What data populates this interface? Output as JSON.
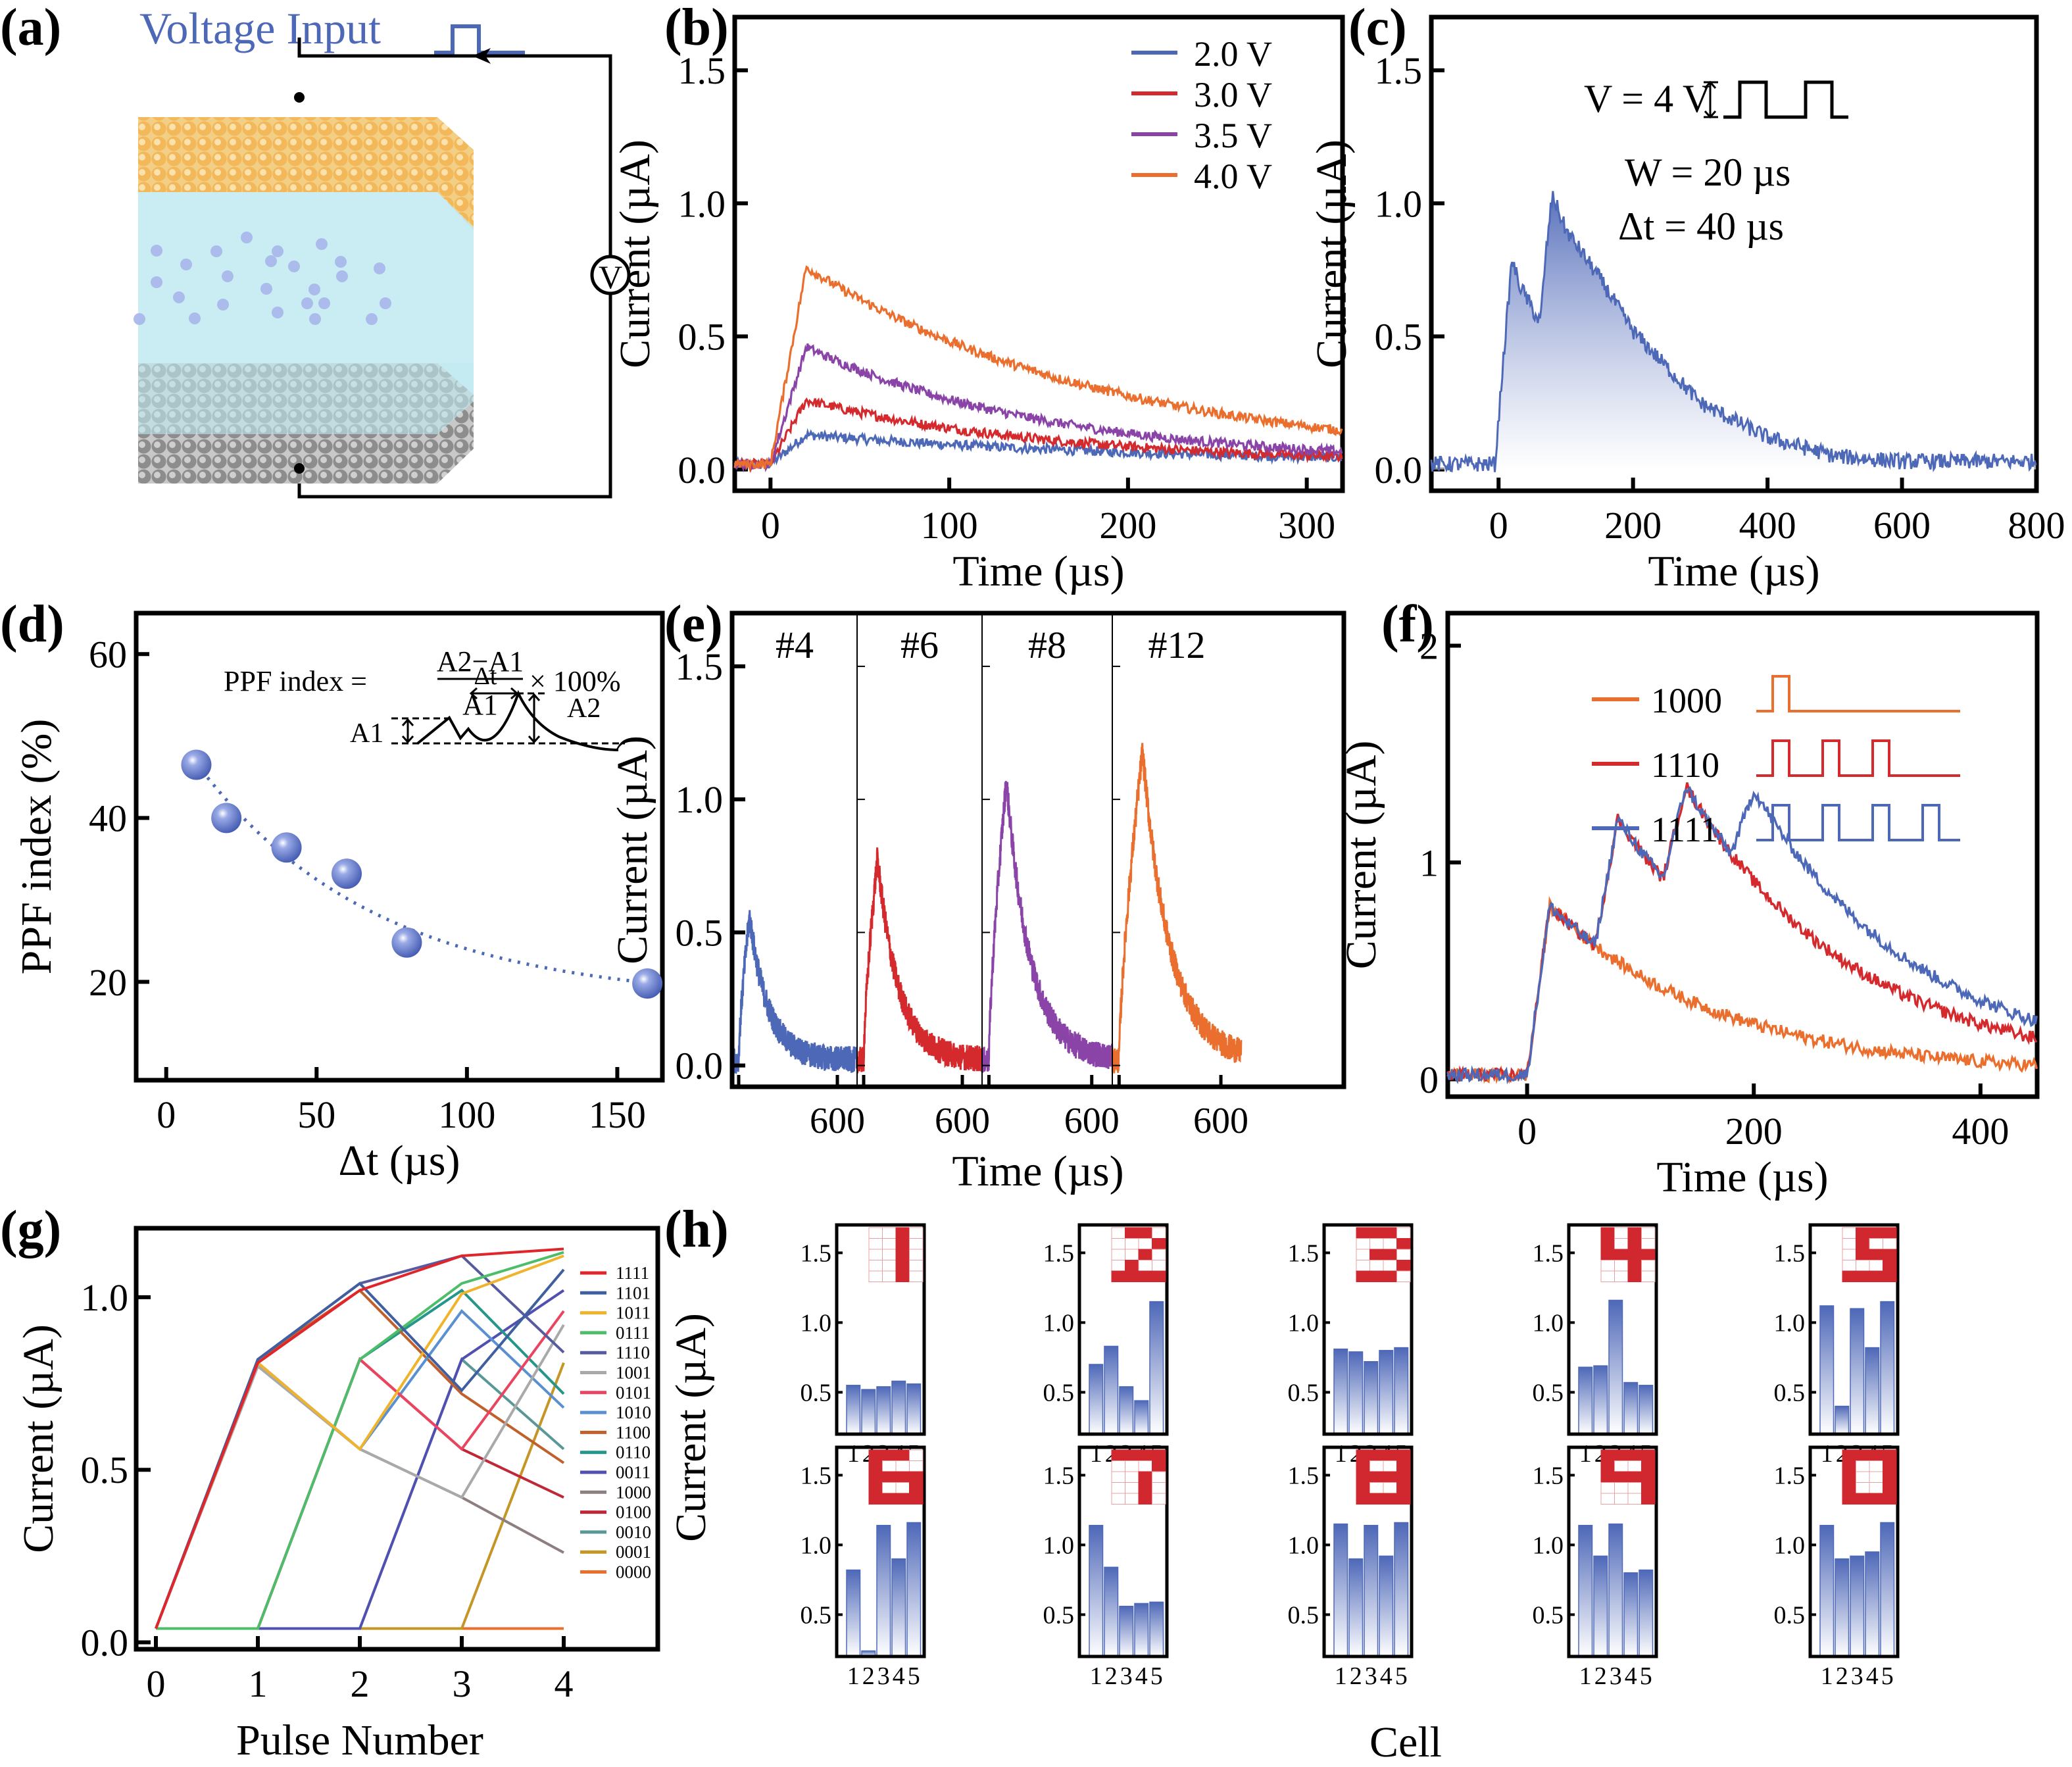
{
  "figure": {
    "panel_labels": [
      "(a)",
      "(b)",
      "(c)",
      "(d)",
      "(e)",
      "(f)",
      "(g)",
      "(h)"
    ],
    "colors": {
      "blue": "#4e68b8",
      "red": "#d42a2e",
      "purple": "#8a44a8",
      "orange": "#ea6f2e",
      "pattern_red": "#d0282e",
      "axis": "#000000"
    }
  },
  "panel_a": {
    "title": "Voltage Input",
    "voltmeter_label": "V",
    "layers": [
      "top electrode",
      "electrolyte with ions",
      "bottom electrode"
    ],
    "layer_colors": {
      "top": "#f2c062",
      "middle": "#bfeaf0",
      "bottom": "#9a9a9a",
      "ions": "#aab8ea"
    }
  },
  "chart_data": [
    {
      "id": "b",
      "type": "line",
      "title": "",
      "xlabel": "Time (µs)",
      "ylabel": "Current (µA)",
      "xlim": [
        -20,
        320
      ],
      "ylim": [
        -0.08,
        1.7
      ],
      "xticks": [
        0,
        100,
        200,
        300
      ],
      "yticks": [
        0.0,
        0.5,
        1.0,
        1.5
      ],
      "ytick_labels": [
        "0.0",
        "0.5",
        "1.0",
        "1.5"
      ],
      "legend_position": "top-right",
      "series": [
        {
          "name": "2.0 V",
          "color": "#4e68b8",
          "baseline": 0.02,
          "rise_start": 0,
          "peak_time": 20,
          "peak": 0.13,
          "tau": 200
        },
        {
          "name": "3.0 V",
          "color": "#d42a2e",
          "baseline": 0.02,
          "rise_start": 0,
          "peak_time": 20,
          "peak": 0.26,
          "tau": 140
        },
        {
          "name": "3.5 V",
          "color": "#8a44a8",
          "baseline": 0.02,
          "rise_start": 0,
          "peak_time": 20,
          "peak": 0.46,
          "tau": 135
        },
        {
          "name": "4.0 V",
          "color": "#ea6f2e",
          "baseline": 0.02,
          "rise_start": 0,
          "peak_time": 20,
          "peak": 0.76,
          "tau": 170
        }
      ]
    },
    {
      "id": "c",
      "type": "area",
      "title": "",
      "xlabel": "Time (µs)",
      "ylabel": "Current (µA)",
      "xlim": [
        -100,
        800
      ],
      "ylim": [
        -0.08,
        1.7
      ],
      "xticks": [
        0,
        200,
        400,
        600,
        800
      ],
      "yticks": [
        0.0,
        0.5,
        1.0,
        1.5
      ],
      "ytick_labels": [
        "0.0",
        "0.5",
        "1.0",
        "1.5"
      ],
      "annotations": [
        "V = 4 V",
        "W = 20 µs",
        "Δt = 40 µs"
      ],
      "series": [
        {
          "name": "paired pulse response",
          "color": "#4e68b8",
          "keypoints": [
            [
              -100,
              0.02
            ],
            [
              -5,
              0.02
            ],
            [
              5,
              0.35
            ],
            [
              20,
              0.79
            ],
            [
              30,
              0.7
            ],
            [
              55,
              0.58
            ],
            [
              62,
              0.55
            ],
            [
              70,
              0.8
            ],
            [
              80,
              1.03
            ],
            [
              100,
              0.9
            ],
            [
              150,
              0.72
            ],
            [
              200,
              0.52
            ],
            [
              300,
              0.25
            ],
            [
              400,
              0.12
            ],
            [
              500,
              0.05
            ],
            [
              600,
              0.03
            ],
            [
              800,
              0.03
            ]
          ]
        }
      ]
    },
    {
      "id": "d",
      "type": "scatter",
      "title": "",
      "xlabel": "Δt (µs)",
      "ylabel": "PPF index (%)",
      "xlim": [
        -10,
        165
      ],
      "ylim": [
        8,
        65
      ],
      "xticks": [
        0,
        50,
        100,
        150
      ],
      "yticks": [
        20,
        40,
        60
      ],
      "formula": {
        "lhs": "PPF index =",
        "numerator": "A2−A1",
        "denominator": "A1",
        "rhs": "× 100%"
      },
      "inset_labels": {
        "dt": "Δt",
        "a1": "A1",
        "a2": "A2"
      },
      "points": [
        {
          "x": 10,
          "y": 46.5
        },
        {
          "x": 20,
          "y": 40.0
        },
        {
          "x": 40,
          "y": 36.4
        },
        {
          "x": 60,
          "y": 33.2
        },
        {
          "x": 80,
          "y": 24.8
        },
        {
          "x": 160,
          "y": 19.8
        }
      ],
      "fit": {
        "type": "exponential",
        "style": "dotted",
        "color": "#4e68b8",
        "y0": 17.5,
        "A": 34.5,
        "tau": 60
      }
    },
    {
      "id": "e",
      "type": "line",
      "title": "",
      "xlabel": "Time (µs)",
      "ylabel": "Current (µA)",
      "ylim": [
        -0.08,
        1.7
      ],
      "yticks": [
        0.0,
        0.5,
        1.0,
        1.5
      ],
      "ytick_labels": [
        "0.0",
        "0.5",
        "1.0",
        "1.5"
      ],
      "subpanel_xtick_label": "600",
      "subpanels": [
        {
          "label": "#4",
          "color": "#4e68b8",
          "peak": 0.56,
          "pulses": 4
        },
        {
          "label": "#6",
          "color": "#d42a2e",
          "peak": 0.78,
          "pulses": 6
        },
        {
          "label": "#8",
          "color": "#8a44a8",
          "peak": 1.07,
          "pulses": 8
        },
        {
          "label": "#12",
          "color": "#ea6f2e",
          "peak": 1.18,
          "pulses": 12
        }
      ]
    },
    {
      "id": "f",
      "type": "line",
      "title": "",
      "xlabel": "Time (µs)",
      "ylabel": "Current (µA)",
      "xlim": [
        -70,
        450
      ],
      "ylim": [
        -0.08,
        2.15
      ],
      "xticks": [
        0,
        200,
        400
      ],
      "yticks": [
        0,
        1,
        2
      ],
      "legend_position": "top",
      "series": [
        {
          "name": "1000",
          "color": "#ea6f2e",
          "pattern": [
            1,
            0,
            0,
            0
          ]
        },
        {
          "name": "1110",
          "color": "#d42a2e",
          "pattern": [
            1,
            1,
            1,
            0
          ]
        },
        {
          "name": "1111",
          "color": "#4e68b8",
          "pattern": [
            1,
            1,
            1,
            1
          ]
        }
      ],
      "pulse_period_us": 60,
      "first_peak": 0.78,
      "peaks": {
        "1110": [
          0.78,
          1.08,
          1.18
        ],
        "1111": [
          0.76,
          1.03,
          1.1,
          1.12
        ]
      }
    },
    {
      "id": "g",
      "type": "line",
      "title": "",
      "xlabel": "Pulse Number",
      "ylabel": "Current (µA)",
      "xlim": [
        -0.2,
        4.8
      ],
      "ylim": [
        -0.02,
        1.2
      ],
      "xticks": [
        0,
        1,
        2,
        3,
        4
      ],
      "yticks": [
        0.0,
        0.5,
        1.0
      ],
      "ytick_labels": [
        "0.0",
        "0.5",
        "1.0"
      ],
      "legend_position": "right",
      "x": [
        0,
        1,
        2,
        3,
        4
      ],
      "series": [
        {
          "name": "1111",
          "color": "#e0262b",
          "values": [
            0.04,
            0.81,
            1.02,
            1.12,
            1.14
          ]
        },
        {
          "name": "1101",
          "color": "#3f5fa0",
          "values": [
            0.04,
            0.82,
            1.04,
            0.73,
            1.08
          ]
        },
        {
          "name": "1011",
          "color": "#f0b32c",
          "values": [
            0.04,
            0.81,
            0.56,
            1.01,
            1.12
          ]
        },
        {
          "name": "0111",
          "color": "#4dbd6a",
          "values": [
            0.04,
            0.04,
            0.82,
            1.04,
            1.13
          ]
        },
        {
          "name": "1110",
          "color": "#565ba0",
          "values": [
            0.04,
            0.82,
            1.04,
            1.12,
            0.84
          ]
        },
        {
          "name": "1001",
          "color": "#a9a9a9",
          "values": [
            0.04,
            0.8,
            0.56,
            0.42,
            0.92
          ]
        },
        {
          "name": "0101",
          "color": "#ea4560",
          "values": [
            0.04,
            0.04,
            0.82,
            0.56,
            0.96
          ]
        },
        {
          "name": "1010",
          "color": "#5a8fd0",
          "values": [
            0.04,
            0.81,
            0.56,
            0.96,
            0.68
          ]
        },
        {
          "name": "1100",
          "color": "#c0602a",
          "values": [
            0.04,
            0.82,
            1.02,
            0.72,
            0.52
          ]
        },
        {
          "name": "0110",
          "color": "#24968a",
          "values": [
            0.04,
            0.04,
            0.82,
            1.02,
            0.72
          ]
        },
        {
          "name": "0011",
          "color": "#5050b0",
          "values": [
            0.04,
            0.04,
            0.04,
            0.82,
            1.02
          ]
        },
        {
          "name": "1000",
          "color": "#8d7f7f",
          "values": [
            0.04,
            0.81,
            0.56,
            0.42,
            0.26
          ]
        },
        {
          "name": "0100",
          "color": "#c02838",
          "values": [
            0.04,
            0.04,
            0.82,
            0.56,
            0.42
          ]
        },
        {
          "name": "0010",
          "color": "#5a9898",
          "values": [
            0.04,
            0.04,
            0.04,
            0.82,
            0.56
          ]
        },
        {
          "name": "0001",
          "color": "#c49626",
          "values": [
            0.04,
            0.04,
            0.04,
            0.04,
            0.81
          ]
        },
        {
          "name": "0000",
          "color": "#ea6f2e",
          "values": [
            0.04,
            0.04,
            0.04,
            0.04,
            0.04
          ]
        }
      ]
    },
    {
      "id": "h",
      "type": "bar",
      "title": "",
      "xlabel": "Cell",
      "ylabel": "Current (µA)",
      "ylim": [
        0.2,
        1.7
      ],
      "yticks": [
        0.5,
        1.0,
        1.5
      ],
      "ytick_labels": [
        "0.5",
        "1.0",
        "1.5"
      ],
      "categories": [
        "1",
        "2",
        "3",
        "4",
        "5"
      ],
      "bar_color": "#4e68b8",
      "subplots": [
        {
          "digit": "1",
          "values": [
            0.55,
            0.52,
            0.54,
            0.58,
            0.56
          ],
          "pattern": [
            [
              0,
              0,
              1,
              0
            ],
            [
              0,
              0,
              1,
              0
            ],
            [
              0,
              0,
              1,
              0
            ],
            [
              0,
              0,
              1,
              0
            ],
            [
              0,
              0,
              1,
              0
            ]
          ]
        },
        {
          "digit": "2",
          "values": [
            0.7,
            0.83,
            0.54,
            0.44,
            1.15
          ],
          "pattern": [
            [
              0,
              1,
              1,
              0
            ],
            [
              0,
              0,
              0,
              1
            ],
            [
              0,
              0,
              1,
              0
            ],
            [
              0,
              1,
              0,
              0
            ],
            [
              1,
              1,
              1,
              1
            ]
          ]
        },
        {
          "digit": "3",
          "values": [
            0.81,
            0.79,
            0.72,
            0.8,
            0.82
          ],
          "pattern": [
            [
              1,
              1,
              1,
              0
            ],
            [
              0,
              0,
              0,
              1
            ],
            [
              0,
              1,
              1,
              0
            ],
            [
              0,
              0,
              0,
              1
            ],
            [
              1,
              1,
              1,
              0
            ]
          ]
        },
        {
          "digit": "4",
          "values": [
            0.68,
            0.69,
            1.16,
            0.57,
            0.55
          ],
          "pattern": [
            [
              1,
              0,
              1,
              0
            ],
            [
              1,
              0,
              1,
              0
            ],
            [
              1,
              1,
              1,
              1
            ],
            [
              0,
              0,
              1,
              0
            ],
            [
              0,
              0,
              1,
              0
            ]
          ]
        },
        {
          "digit": "5",
          "values": [
            1.12,
            0.4,
            1.1,
            0.82,
            1.15
          ],
          "pattern": [
            [
              0,
              1,
              1,
              1
            ],
            [
              0,
              1,
              0,
              0
            ],
            [
              0,
              1,
              1,
              1
            ],
            [
              0,
              0,
              0,
              1
            ],
            [
              1,
              1,
              1,
              1
            ]
          ]
        },
        {
          "digit": "6",
          "values": [
            0.82,
            0.24,
            1.14,
            0.9,
            1.16
          ],
          "pattern": [
            [
              1,
              1,
              1,
              0
            ],
            [
              1,
              0,
              0,
              0
            ],
            [
              1,
              1,
              1,
              1
            ],
            [
              1,
              0,
              0,
              1
            ],
            [
              1,
              1,
              1,
              1
            ]
          ]
        },
        {
          "digit": "7",
          "values": [
            1.14,
            0.84,
            0.56,
            0.58,
            0.59
          ],
          "pattern": [
            [
              1,
              1,
              1,
              1
            ],
            [
              0,
              0,
              0,
              1
            ],
            [
              0,
              0,
              1,
              0
            ],
            [
              0,
              0,
              1,
              0
            ],
            [
              0,
              0,
              1,
              0
            ]
          ]
        },
        {
          "digit": "8",
          "values": [
            1.15,
            0.9,
            1.14,
            0.92,
            1.16
          ],
          "pattern": [
            [
              1,
              1,
              1,
              1
            ],
            [
              1,
              0,
              0,
              1
            ],
            [
              1,
              1,
              1,
              1
            ],
            [
              1,
              0,
              0,
              1
            ],
            [
              1,
              1,
              1,
              1
            ]
          ]
        },
        {
          "digit": "9",
          "values": [
            1.14,
            0.92,
            1.15,
            0.8,
            0.82
          ],
          "pattern": [
            [
              1,
              1,
              1,
              1
            ],
            [
              1,
              0,
              0,
              1
            ],
            [
              1,
              1,
              1,
              1
            ],
            [
              0,
              0,
              0,
              1
            ],
            [
              0,
              0,
              0,
              1
            ]
          ]
        },
        {
          "digit": "0",
          "values": [
            1.14,
            0.9,
            0.92,
            0.95,
            1.16
          ],
          "pattern": [
            [
              1,
              1,
              1,
              1
            ],
            [
              1,
              0,
              0,
              1
            ],
            [
              1,
              0,
              0,
              1
            ],
            [
              1,
              0,
              0,
              1
            ],
            [
              1,
              1,
              1,
              1
            ]
          ]
        }
      ]
    }
  ]
}
